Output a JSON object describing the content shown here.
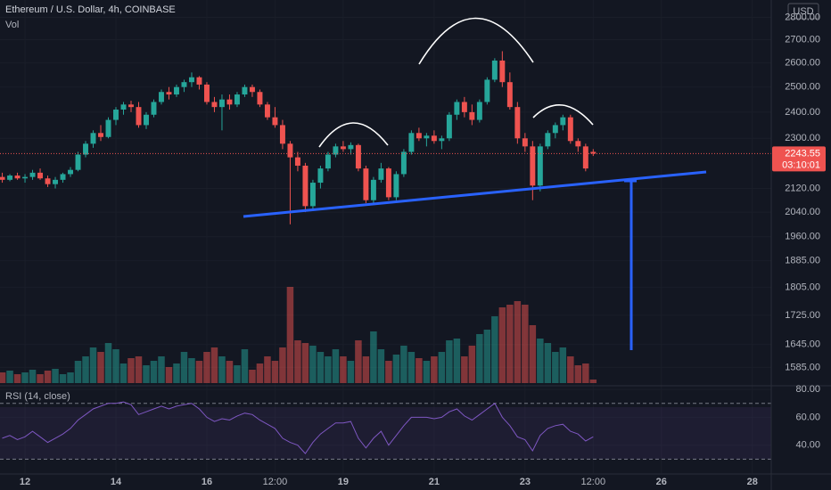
{
  "chart_data": [
    {
      "type": "candlestick",
      "title": "Ethereum / U.S. Dollar, 4h, COINBASE",
      "volume_label": "Vol",
      "currency": "USD",
      "last_price": 2243.55,
      "countdown": "03:10:01",
      "up_color": "#26a69a",
      "down_color": "#ef5350",
      "log": true,
      "xlim": [
        -0.3,
        101.5
      ],
      "ylim": [
        1545,
        2880
      ],
      "xticks": [
        {
          "value": 3,
          "label": "12"
        },
        {
          "value": 15,
          "label": "14"
        },
        {
          "value": 27,
          "label": "16"
        },
        {
          "value": 36,
          "label": "12:00"
        },
        {
          "value": 45,
          "label": "19"
        },
        {
          "value": 57,
          "label": "21"
        },
        {
          "value": 69,
          "label": "23"
        },
        {
          "value": 78,
          "label": "12:00"
        },
        {
          "value": 87,
          "label": "26"
        },
        {
          "value": 99,
          "label": "28"
        }
      ],
      "yticks": [
        {
          "value": 2800,
          "label": "2800.00"
        },
        {
          "value": 2700,
          "label": "2700.00"
        },
        {
          "value": 2600,
          "label": "2600.00"
        },
        {
          "value": 2500,
          "label": "2500.00"
        },
        {
          "value": 2400,
          "label": "2400.00"
        },
        {
          "value": 2300,
          "label": "2300.00"
        },
        {
          "value": 2120,
          "label": "2120.00"
        },
        {
          "value": 2040,
          "label": "2040.00"
        },
        {
          "value": 1960,
          "label": "1960.00"
        },
        {
          "value": 1885,
          "label": "1885.00"
        },
        {
          "value": 1805,
          "label": "1805.00"
        },
        {
          "value": 1725,
          "label": "1725.00"
        },
        {
          "value": 1645,
          "label": "1645.00"
        },
        {
          "value": 1585,
          "label": "1585.00"
        }
      ],
      "x": [
        0,
        1,
        2,
        3,
        4,
        5,
        6,
        7,
        8,
        9,
        10,
        11,
        12,
        13,
        14,
        15,
        16,
        17,
        18,
        19,
        20,
        21,
        22,
        23,
        24,
        25,
        26,
        27,
        28,
        29,
        30,
        31,
        32,
        33,
        34,
        35,
        36,
        37,
        38,
        39,
        40,
        41,
        42,
        43,
        44,
        45,
        46,
        47,
        48,
        49,
        50,
        51,
        52,
        53,
        54,
        55,
        56,
        57,
        58,
        59,
        60,
        61,
        62,
        63,
        64,
        65,
        66,
        67,
        68,
        69,
        70,
        71,
        72,
        73,
        74,
        75,
        76,
        77,
        78
      ],
      "open": [
        2160,
        2150,
        2165,
        2155,
        2160,
        2175,
        2155,
        2135,
        2150,
        2170,
        2185,
        2240,
        2280,
        2320,
        2305,
        2370,
        2410,
        2430,
        2420,
        2350,
        2390,
        2440,
        2480,
        2470,
        2500,
        2520,
        2540,
        2510,
        2440,
        2420,
        2450,
        2430,
        2470,
        2500,
        2480,
        2430,
        2380,
        2350,
        2280,
        2230,
        2200,
        2060,
        2140,
        2190,
        2240,
        2270,
        2260,
        2275,
        2190,
        2080,
        2150,
        2190,
        2090,
        2170,
        2250,
        2320,
        2300,
        2310,
        2290,
        2300,
        2390,
        2440,
        2400,
        2370,
        2440,
        2530,
        2610,
        2520,
        2420,
        2300,
        2270,
        2130,
        2270,
        2320,
        2350,
        2380,
        2290,
        2270,
        2250
      ],
      "high": [
        2175,
        2170,
        2175,
        2170,
        2185,
        2190,
        2165,
        2160,
        2175,
        2195,
        2250,
        2290,
        2330,
        2350,
        2380,
        2420,
        2440,
        2445,
        2440,
        2400,
        2450,
        2490,
        2500,
        2510,
        2530,
        2560,
        2545,
        2520,
        2460,
        2470,
        2470,
        2480,
        2510,
        2510,
        2490,
        2440,
        2420,
        2370,
        2290,
        2250,
        2210,
        2150,
        2200,
        2250,
        2280,
        2290,
        2285,
        2280,
        2200,
        2160,
        2210,
        2195,
        2180,
        2260,
        2330,
        2340,
        2320,
        2330,
        2310,
        2400,
        2450,
        2460,
        2430,
        2450,
        2540,
        2620,
        2650,
        2560,
        2440,
        2320,
        2290,
        2280,
        2330,
        2360,
        2390,
        2390,
        2300,
        2280,
        2260
      ],
      "low": [
        2140,
        2145,
        2150,
        2140,
        2150,
        2150,
        2125,
        2120,
        2140,
        2160,
        2180,
        2230,
        2265,
        2290,
        2300,
        2350,
        2390,
        2400,
        2340,
        2335,
        2380,
        2430,
        2450,
        2460,
        2480,
        2500,
        2490,
        2430,
        2400,
        2330,
        2410,
        2420,
        2460,
        2460,
        2420,
        2370,
        2340,
        2260,
        2000,
        2180,
        2040,
        2050,
        2120,
        2180,
        2230,
        2250,
        2240,
        2180,
        2070,
        2070,
        2140,
        2080,
        2080,
        2160,
        2240,
        2290,
        2270,
        2280,
        2260,
        2290,
        2370,
        2380,
        2350,
        2360,
        2430,
        2520,
        2500,
        2410,
        2280,
        2250,
        2080,
        2110,
        2260,
        2300,
        2330,
        2280,
        2250,
        2180,
        2235
      ],
      "close": [
        2150,
        2165,
        2155,
        2160,
        2175,
        2155,
        2135,
        2150,
        2170,
        2185,
        2240,
        2280,
        2320,
        2305,
        2370,
        2410,
        2430,
        2420,
        2350,
        2390,
        2440,
        2480,
        2470,
        2500,
        2520,
        2540,
        2510,
        2440,
        2420,
        2450,
        2430,
        2470,
        2500,
        2480,
        2430,
        2380,
        2350,
        2280,
        2230,
        2200,
        2060,
        2140,
        2190,
        2240,
        2270,
        2260,
        2275,
        2190,
        2080,
        2150,
        2190,
        2090,
        2170,
        2250,
        2320,
        2300,
        2310,
        2290,
        2300,
        2390,
        2440,
        2400,
        2370,
        2440,
        2530,
        2610,
        2520,
        2420,
        2300,
        2270,
        2130,
        2270,
        2320,
        2350,
        2380,
        2290,
        2270,
        2190,
        2243.55
      ],
      "volume": [
        12,
        14,
        10,
        12,
        15,
        10,
        14,
        16,
        10,
        12,
        25,
        30,
        40,
        35,
        45,
        38,
        22,
        28,
        30,
        20,
        25,
        30,
        18,
        22,
        35,
        28,
        25,
        35,
        40,
        30,
        25,
        20,
        38,
        15,
        22,
        30,
        25,
        40,
        108,
        48,
        45,
        42,
        35,
        30,
        38,
        30,
        25,
        48,
        30,
        58,
        38,
        25,
        32,
        42,
        35,
        28,
        25,
        30,
        35,
        48,
        50,
        30,
        42,
        55,
        60,
        75,
        85,
        88,
        92,
        88,
        65,
        50,
        45,
        35,
        40,
        30,
        20,
        22,
        4
      ]
    },
    {
      "type": "line",
      "title": "RSI (14, close)",
      "color": "#7e57c2",
      "bands": [
        30,
        70
      ],
      "ylim": [
        20,
        82
      ],
      "yticks": [
        {
          "value": 80,
          "label": "80.00"
        },
        {
          "value": 60,
          "label": "60.00"
        },
        {
          "value": 40,
          "label": "40.00"
        }
      ],
      "x": [
        0,
        1,
        2,
        3,
        4,
        5,
        6,
        7,
        8,
        9,
        10,
        11,
        12,
        13,
        14,
        15,
        16,
        17,
        18,
        19,
        20,
        21,
        22,
        23,
        24,
        25,
        26,
        27,
        28,
        29,
        30,
        31,
        32,
        33,
        34,
        35,
        36,
        37,
        38,
        39,
        40,
        41,
        42,
        43,
        44,
        45,
        46,
        47,
        48,
        49,
        50,
        51,
        52,
        53,
        54,
        55,
        56,
        57,
        58,
        59,
        60,
        61,
        62,
        63,
        64,
        65,
        66,
        67,
        68,
        69,
        70,
        71,
        72,
        73,
        74,
        75,
        76,
        77,
        78
      ],
      "values": [
        45,
        47,
        44,
        46,
        50,
        46,
        42,
        45,
        48,
        52,
        58,
        62,
        66,
        68,
        70,
        70,
        71,
        69,
        62,
        64,
        66,
        68,
        66,
        68,
        69,
        70,
        66,
        60,
        57,
        59,
        58,
        61,
        63,
        62,
        58,
        55,
        52,
        45,
        42,
        40,
        34,
        42,
        48,
        52,
        56,
        56,
        57,
        45,
        38,
        45,
        50,
        40,
        47,
        54,
        60,
        60,
        60,
        59,
        60,
        64,
        66,
        61,
        58,
        62,
        66,
        70,
        60,
        54,
        46,
        44,
        36,
        47,
        52,
        54,
        55,
        50,
        48,
        43,
        46
      ]
    }
  ]
}
